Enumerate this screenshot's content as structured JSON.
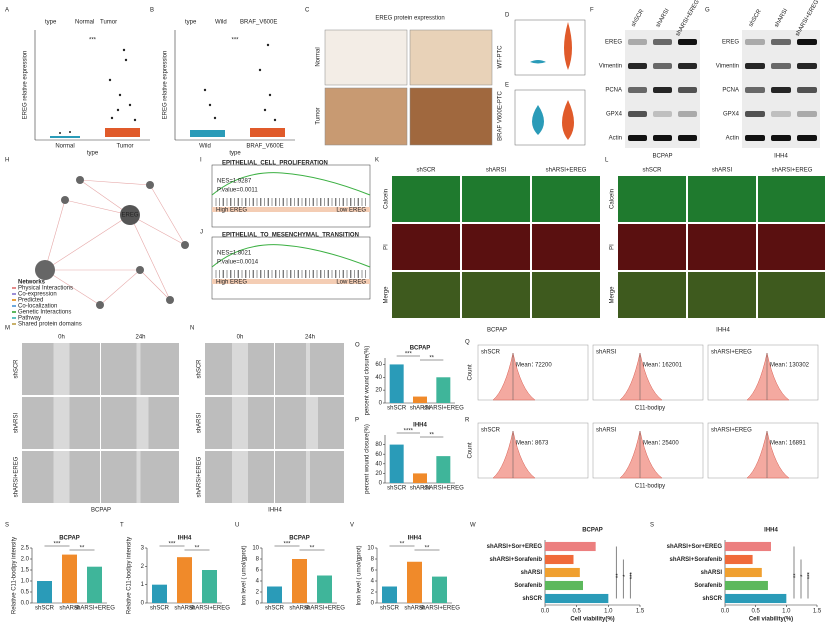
{
  "panels": {
    "labels": [
      "A",
      "B",
      "C",
      "D",
      "E",
      "F",
      "G",
      "H",
      "I",
      "J",
      "K",
      "L",
      "M",
      "N",
      "O",
      "P",
      "Q",
      "R",
      "S",
      "T",
      "U",
      "V",
      "W",
      "S"
    ]
  },
  "groups": [
    "shSCR",
    "shARSI",
    "shARSI+EREG"
  ],
  "a": {
    "legend_title": "type",
    "legend": [
      "Normal",
      "Tumor"
    ],
    "y_label": "EREG relative expression",
    "categories": [
      "Normal",
      "Tumor"
    ],
    "x_label": "type",
    "sig": "***"
  },
  "b": {
    "legend_title": "type",
    "legend": [
      "Wild",
      "BRAF_V600E"
    ],
    "y_label": "EREG relative expression",
    "categories": [
      "Wild",
      "BRAF_V600E"
    ],
    "x_label": "type",
    "sig": "***"
  },
  "c": {
    "title": "EREG protein expresstion",
    "rows": [
      "Normal",
      "Tumor"
    ],
    "cols": [
      "WT-PTC",
      "BRAF V600E-PTC"
    ]
  },
  "blots": {
    "rows": [
      "EREG",
      "Vimentin",
      "PCNA",
      "GPX4",
      "Actin"
    ],
    "cells": [
      "BCPAP",
      "IHH4"
    ]
  },
  "network": {
    "center": "EREG",
    "legend_title": "Networks",
    "items": [
      "Physical Interactions",
      "Co-expression",
      "Predicted",
      "Co-localization",
      "Genetic Interactions",
      "Pathway",
      "Shared protein domains"
    ]
  },
  "gsea": [
    {
      "title": "EPITHELIAL_CELL_PROLIFERATION",
      "nes": "NES=1.9287",
      "p": "P.value=0.0011",
      "high": "High EREG",
      "low": "Low EREG"
    },
    {
      "title": "EPITHELIAL_TO_MESENCHYMAL_TRANSITION",
      "nes": "NES=1.8021",
      "p": "P.value=0.0014",
      "high": "High EREG",
      "low": "Low EREG"
    }
  ],
  "staining": {
    "rows": [
      "Calcein",
      "PI",
      "Merge"
    ],
    "cells": [
      "BCPAP",
      "IHH4"
    ]
  },
  "wound": {
    "times": [
      "0h",
      "24h"
    ],
    "cells": [
      "BCPAP",
      "IHH4"
    ]
  },
  "flow": {
    "x_label": "C11-bodipy",
    "y_label": "Count",
    "mean_label": "Mean：",
    "rows": [
      {
        "values": [
          72200,
          162001,
          130302
        ]
      },
      {
        "values": [
          8673,
          25400,
          16891
        ]
      }
    ]
  },
  "charts": [
    {
      "type": "bar",
      "title": "BCPAP",
      "y_label": "percent wound closure(%)",
      "categories": [
        "shSCR",
        "shARSI",
        "shARSI+EREG"
      ],
      "values": [
        60,
        10,
        40
      ],
      "colors": [
        "#2a9bb8",
        "#f08a2a",
        "#3fb59a"
      ],
      "ylim": [
        0,
        70
      ],
      "yticks": [
        0,
        20,
        40,
        60
      ],
      "sig": [
        "***",
        "**"
      ]
    },
    {
      "type": "bar",
      "title": "IHH4",
      "y_label": "percent wound closure(%)",
      "categories": [
        "shSCR",
        "shARSI",
        "shARSI+EREG"
      ],
      "values": [
        80,
        20,
        56
      ],
      "colors": [
        "#2a9bb8",
        "#f08a2a",
        "#3fb59a"
      ],
      "ylim": [
        0,
        100
      ],
      "yticks": [
        0,
        20,
        40,
        60,
        80
      ],
      "sig": [
        "****",
        "**"
      ]
    },
    {
      "type": "bar",
      "title": "BCPAP",
      "y_label": "Relative C11-bodipy intensity",
      "categories": [
        "shSCR",
        "shARSI",
        "shARSI+EREG"
      ],
      "values": [
        1.0,
        2.2,
        1.65
      ],
      "colors": [
        "#2a9bb8",
        "#f08a2a",
        "#3fb59a"
      ],
      "ylim": [
        0,
        2.5
      ],
      "yticks": [
        {
          "value": 0,
          "label": "0.0"
        },
        {
          "value": 0.5,
          "label": "0.5"
        },
        {
          "value": 1,
          "label": "1.0"
        },
        {
          "value": 1.5,
          "label": "1.5"
        },
        {
          "value": 2,
          "label": "2.0"
        },
        {
          "value": 2.5,
          "label": "2.5"
        }
      ],
      "sig": [
        "***",
        "**"
      ]
    },
    {
      "type": "bar",
      "title": "IHH4",
      "y_label": "Relative C11-bodipy intensity",
      "categories": [
        "shSCR",
        "shARSI",
        "shARSI+EREG"
      ],
      "values": [
        1.0,
        2.5,
        1.8
      ],
      "colors": [
        "#2a9bb8",
        "#f08a2a",
        "#3fb59a"
      ],
      "ylim": [
        0,
        3
      ],
      "yticks": [
        0,
        1,
        2,
        3
      ],
      "sig": [
        "***",
        "**"
      ]
    },
    {
      "type": "bar",
      "title": "BCPAP",
      "y_label": "Iron level ( umol/gprot)",
      "categories": [
        "shSCR",
        "shARSI",
        "shARSI+EREG"
      ],
      "values": [
        3,
        8,
        5
      ],
      "colors": [
        "#2a9bb8",
        "#f08a2a",
        "#3fb59a"
      ],
      "ylim": [
        0,
        10
      ],
      "yticks": [
        0,
        2,
        4,
        6,
        8,
        10
      ],
      "sig": [
        "***",
        "**"
      ]
    },
    {
      "type": "bar",
      "title": "IHH4",
      "y_label": "Iron level ( umol/gprot)",
      "categories": [
        "shSCR",
        "shARSI",
        "shARSI+EREG"
      ],
      "values": [
        3,
        7.5,
        4.8
      ],
      "colors": [
        "#2a9bb8",
        "#f08a2a",
        "#3fb59a"
      ],
      "ylim": [
        0,
        10
      ],
      "yticks": [
        0,
        2,
        4,
        6,
        8,
        10
      ],
      "sig": [
        "**",
        "**"
      ]
    },
    {
      "type": "hbar",
      "title": "BCPAP",
      "x_label": "Cell viability(%)",
      "categories": [
        "shARSI+Sor+EREG",
        "shARSI+Sorafenib",
        "shARSI",
        "Sorafenib",
        "shSCR"
      ],
      "values": [
        0.8,
        0.45,
        0.55,
        0.6,
        1.0
      ],
      "colors": [
        "#ec7f7f",
        "#f06a3a",
        "#f0a030",
        "#5cb85c",
        "#2a9bb8"
      ],
      "xlim": [
        0,
        1.5
      ],
      "xticks": [
        {
          "value": 0,
          "label": "0.0"
        },
        {
          "value": 0.5,
          "label": "0.5"
        },
        {
          "value": 1,
          "label": "1.0"
        },
        {
          "value": 1.5,
          "label": "1.5"
        }
      ],
      "sig": [
        "**",
        "*",
        "***"
      ]
    },
    {
      "type": "hbar",
      "title": "IHH4",
      "x_label": "Cell viability(%)",
      "categories": [
        "shARSI+Sor+EREG",
        "shARSI+Sorafenib",
        "shARSI",
        "Sorafenib",
        "shSCR"
      ],
      "values": [
        0.75,
        0.45,
        0.6,
        0.7,
        1.0
      ],
      "colors": [
        "#ec7f7f",
        "#f06a3a",
        "#f0a030",
        "#5cb85c",
        "#2a9bb8"
      ],
      "xlim": [
        0,
        1.5
      ],
      "xticks": [
        {
          "value": 0,
          "label": "0.0"
        },
        {
          "value": 0.5,
          "label": "0.5"
        },
        {
          "value": 1,
          "label": "1.0"
        },
        {
          "value": 1.5,
          "label": "1.5"
        }
      ],
      "sig": [
        "**",
        "*",
        "***"
      ]
    }
  ]
}
